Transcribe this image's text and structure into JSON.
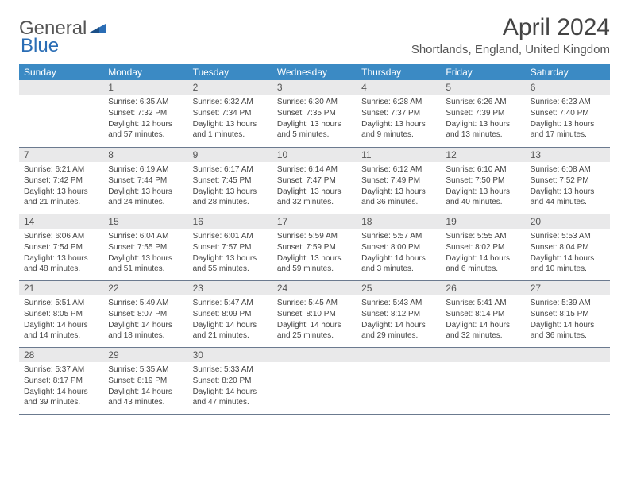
{
  "brand": {
    "part1": "General",
    "part2": "Blue"
  },
  "title": "April 2024",
  "location": "Shortlands, England, United Kingdom",
  "colors": {
    "header_bg": "#3b8ac4",
    "header_text": "#ffffff",
    "daynum_bg": "#e9e9ea",
    "border": "#6b7a8f",
    "logo_blue": "#2a6db5"
  },
  "weekdays": [
    "Sunday",
    "Monday",
    "Tuesday",
    "Wednesday",
    "Thursday",
    "Friday",
    "Saturday"
  ],
  "start_offset": 1,
  "days": [
    {
      "n": 1,
      "sr": "6:35 AM",
      "ss": "7:32 PM",
      "dl": "12 hours and 57 minutes."
    },
    {
      "n": 2,
      "sr": "6:32 AM",
      "ss": "7:34 PM",
      "dl": "13 hours and 1 minutes."
    },
    {
      "n": 3,
      "sr": "6:30 AM",
      "ss": "7:35 PM",
      "dl": "13 hours and 5 minutes."
    },
    {
      "n": 4,
      "sr": "6:28 AM",
      "ss": "7:37 PM",
      "dl": "13 hours and 9 minutes."
    },
    {
      "n": 5,
      "sr": "6:26 AM",
      "ss": "7:39 PM",
      "dl": "13 hours and 13 minutes."
    },
    {
      "n": 6,
      "sr": "6:23 AM",
      "ss": "7:40 PM",
      "dl": "13 hours and 17 minutes."
    },
    {
      "n": 7,
      "sr": "6:21 AM",
      "ss": "7:42 PM",
      "dl": "13 hours and 21 minutes."
    },
    {
      "n": 8,
      "sr": "6:19 AM",
      "ss": "7:44 PM",
      "dl": "13 hours and 24 minutes."
    },
    {
      "n": 9,
      "sr": "6:17 AM",
      "ss": "7:45 PM",
      "dl": "13 hours and 28 minutes."
    },
    {
      "n": 10,
      "sr": "6:14 AM",
      "ss": "7:47 PM",
      "dl": "13 hours and 32 minutes."
    },
    {
      "n": 11,
      "sr": "6:12 AM",
      "ss": "7:49 PM",
      "dl": "13 hours and 36 minutes."
    },
    {
      "n": 12,
      "sr": "6:10 AM",
      "ss": "7:50 PM",
      "dl": "13 hours and 40 minutes."
    },
    {
      "n": 13,
      "sr": "6:08 AM",
      "ss": "7:52 PM",
      "dl": "13 hours and 44 minutes."
    },
    {
      "n": 14,
      "sr": "6:06 AM",
      "ss": "7:54 PM",
      "dl": "13 hours and 48 minutes."
    },
    {
      "n": 15,
      "sr": "6:04 AM",
      "ss": "7:55 PM",
      "dl": "13 hours and 51 minutes."
    },
    {
      "n": 16,
      "sr": "6:01 AM",
      "ss": "7:57 PM",
      "dl": "13 hours and 55 minutes."
    },
    {
      "n": 17,
      "sr": "5:59 AM",
      "ss": "7:59 PM",
      "dl": "13 hours and 59 minutes."
    },
    {
      "n": 18,
      "sr": "5:57 AM",
      "ss": "8:00 PM",
      "dl": "14 hours and 3 minutes."
    },
    {
      "n": 19,
      "sr": "5:55 AM",
      "ss": "8:02 PM",
      "dl": "14 hours and 6 minutes."
    },
    {
      "n": 20,
      "sr": "5:53 AM",
      "ss": "8:04 PM",
      "dl": "14 hours and 10 minutes."
    },
    {
      "n": 21,
      "sr": "5:51 AM",
      "ss": "8:05 PM",
      "dl": "14 hours and 14 minutes."
    },
    {
      "n": 22,
      "sr": "5:49 AM",
      "ss": "8:07 PM",
      "dl": "14 hours and 18 minutes."
    },
    {
      "n": 23,
      "sr": "5:47 AM",
      "ss": "8:09 PM",
      "dl": "14 hours and 21 minutes."
    },
    {
      "n": 24,
      "sr": "5:45 AM",
      "ss": "8:10 PM",
      "dl": "14 hours and 25 minutes."
    },
    {
      "n": 25,
      "sr": "5:43 AM",
      "ss": "8:12 PM",
      "dl": "14 hours and 29 minutes."
    },
    {
      "n": 26,
      "sr": "5:41 AM",
      "ss": "8:14 PM",
      "dl": "14 hours and 32 minutes."
    },
    {
      "n": 27,
      "sr": "5:39 AM",
      "ss": "8:15 PM",
      "dl": "14 hours and 36 minutes."
    },
    {
      "n": 28,
      "sr": "5:37 AM",
      "ss": "8:17 PM",
      "dl": "14 hours and 39 minutes."
    },
    {
      "n": 29,
      "sr": "5:35 AM",
      "ss": "8:19 PM",
      "dl": "14 hours and 43 minutes."
    },
    {
      "n": 30,
      "sr": "5:33 AM",
      "ss": "8:20 PM",
      "dl": "14 hours and 47 minutes."
    }
  ],
  "labels": {
    "sunrise": "Sunrise:",
    "sunset": "Sunset:",
    "daylight": "Daylight:"
  }
}
